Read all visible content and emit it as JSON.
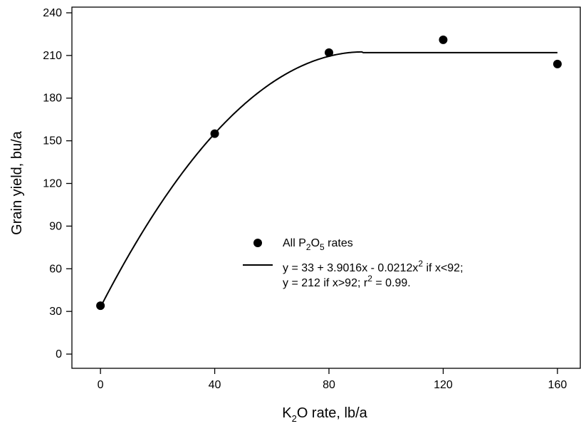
{
  "chart_data": {
    "type": "scatter",
    "title": "",
    "xlabel": {
      "main": "K",
      "sub": "2",
      "rest": "O rate, lb/a"
    },
    "ylabel": "Grain yield, bu/a",
    "xlim": [
      -10,
      168
    ],
    "ylim": [
      -10,
      244
    ],
    "xticks": [
      0,
      40,
      80,
      120,
      160
    ],
    "xtick_labels": [
      "0",
      "40",
      "80",
      "120",
      "160"
    ],
    "yticks": [
      0,
      30,
      60,
      90,
      120,
      150,
      180,
      210,
      240
    ],
    "ytick_labels": [
      "0",
      "30",
      "60",
      "90",
      "120",
      "150",
      "180",
      "210",
      "240"
    ],
    "grid": false,
    "legend_position": "center-right",
    "series": [
      {
        "name": "All P2O5 rates",
        "kind": "points",
        "x": [
          0,
          40,
          80,
          120,
          160
        ],
        "y": [
          34,
          155,
          212,
          221,
          204
        ]
      },
      {
        "kind": "fit",
        "model": {
          "intercept": 33,
          "linear": 3.9016,
          "quadratic": -0.0212,
          "breakpoint": 92,
          "plateau": 212,
          "x_end": 160
        }
      }
    ],
    "legend": {
      "points": {
        "pre": "All P",
        "sub1": "2",
        "mid": "O",
        "sub2": "5",
        "post": " rates"
      },
      "fit_line1": {
        "pre": "y = 33 + 3.9016x - 0.0212x",
        "sup": "2",
        "post": " if x<92;"
      },
      "fit_line2": {
        "pre": "y = 212 if x>92; r",
        "sup": "2",
        "post": " = 0.99."
      }
    },
    "colors": {
      "marker": "#000000",
      "line": "#000000",
      "axis": "#000000"
    }
  }
}
